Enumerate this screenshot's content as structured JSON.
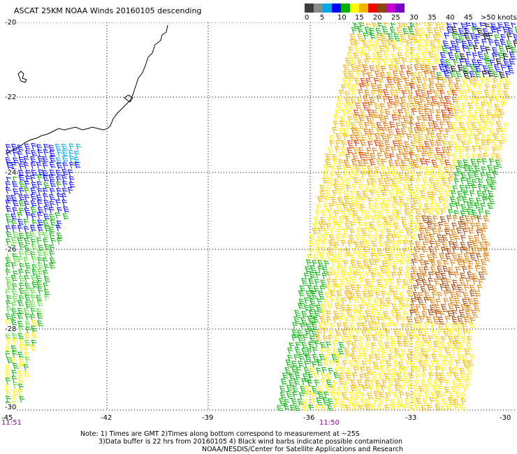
{
  "title": "ASCAT 25KM NOAA Winds 20160105 descending",
  "lat_labels": [
    "-20",
    "-22",
    "-24",
    "-26",
    "-28",
    "-30"
  ],
  "lon_labels": [
    "-45",
    "-42",
    "-39",
    "-36",
    "-33",
    "-30"
  ],
  "time_labels": [
    "11:51",
    "11:50"
  ],
  "scale": {
    "bins": [
      {
        "label": "0",
        "color": "#3c3c3c"
      },
      {
        "label": "5",
        "color": "#8c8c8c"
      },
      {
        "label": "10",
        "color": "#00a8e8"
      },
      {
        "label": "15",
        "color": "#0000ff"
      },
      {
        "label": "20",
        "color": "#00b000"
      },
      {
        "label": "25",
        "color": "#ffff00"
      },
      {
        "label": "30",
        "color": "#f0b400"
      },
      {
        "label": "35",
        "color": "#ff0000"
      },
      {
        "label": "40",
        "color": "#8b4513"
      },
      {
        "label": "45",
        "color": "#cc00cc"
      },
      {
        "label": ">50 knots",
        "color": "#7800c8"
      }
    ],
    "labels": [
      "0",
      "5",
      "10",
      "15",
      "20",
      "25",
      "30",
      "35",
      "40",
      "45",
      ">50 knots"
    ]
  },
  "notes": [
    "Note: 1) Times are GMT 2)Times along bottom correspond to measurement at ~25S",
    "3)Data buffer is 22 hrs from 20160105 4) Black wind barbs indicate possible contamination",
    "NOAA/NESDIS/Center for Satellite Applications and Research"
  ],
  "map": {
    "lat_range": [
      -30,
      -20
    ],
    "lon_range": [
      -45,
      -30
    ],
    "gridlines": "dotted",
    "coastline": "Brazil, southeast coast"
  }
}
